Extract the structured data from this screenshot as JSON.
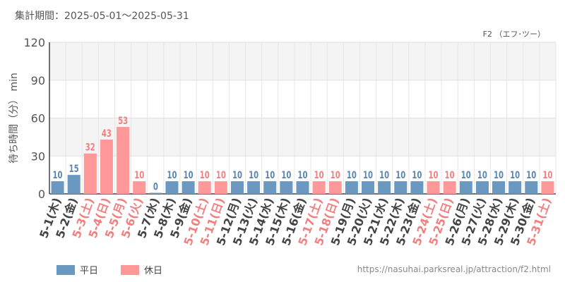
{
  "header": {
    "period_label": "集計期間：2025-05-01～2025-05-31",
    "attraction_label": "F2 （エフ･ツー）"
  },
  "footer": {
    "source_url": "https://nasuhai.parksreal.jp/attraction/f2.html"
  },
  "colors": {
    "weekday": "#6a98c0",
    "holiday": "#ff9999",
    "weekday_text": "#5a86b0",
    "holiday_text": "#f08080"
  },
  "chart_data": {
    "type": "bar",
    "ylabel": "待ち時間（分） min",
    "ylim": [
      0,
      120
    ],
    "yticks": [
      0,
      30,
      60,
      90,
      120
    ],
    "grid": true,
    "legend_position": "bottom-left",
    "legend": [
      {
        "key": "weekday",
        "label": "平日"
      },
      {
        "key": "holiday",
        "label": "休日"
      }
    ],
    "categories": [
      "5-1(木)",
      "5-2(金)",
      "5-3(土)",
      "5-4(日)",
      "5-5(月)",
      "5-6(火)",
      "5-7(水)",
      "5-8(木)",
      "5-9(金)",
      "5-10(土)",
      "5-11(日)",
      "5-12(月)",
      "5-13(火)",
      "5-14(水)",
      "5-15(木)",
      "5-16(金)",
      "5-17(土)",
      "5-18(日)",
      "5-19(月)",
      "5-20(火)",
      "5-21(水)",
      "5-22(木)",
      "5-23(金)",
      "5-24(土)",
      "5-25(日)",
      "5-26(月)",
      "5-27(火)",
      "5-28(水)",
      "5-29(木)",
      "5-30(金)",
      "5-31(土)"
    ],
    "values": [
      10,
      15,
      32,
      43,
      53,
      10,
      0,
      10,
      10,
      10,
      10,
      10,
      10,
      10,
      10,
      10,
      10,
      10,
      10,
      10,
      10,
      10,
      10,
      10,
      10,
      10,
      10,
      10,
      10,
      10,
      10
    ],
    "day_type": [
      "weekday",
      "weekday",
      "holiday",
      "holiday",
      "holiday",
      "holiday",
      "weekday",
      "weekday",
      "weekday",
      "holiday",
      "holiday",
      "weekday",
      "weekday",
      "weekday",
      "weekday",
      "weekday",
      "holiday",
      "holiday",
      "weekday",
      "weekday",
      "weekday",
      "weekday",
      "weekday",
      "holiday",
      "holiday",
      "weekday",
      "weekday",
      "weekday",
      "weekday",
      "weekday",
      "holiday"
    ]
  }
}
